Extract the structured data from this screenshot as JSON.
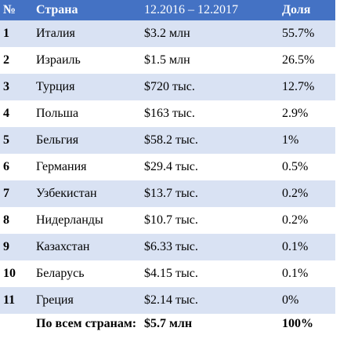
{
  "header": {
    "number": "№",
    "country": "Страна",
    "period": "12.2016 – 12.2017",
    "share": "Доля"
  },
  "rows": [
    {
      "num": "1",
      "country": "Италия",
      "amount": "$3.2 млн",
      "share": "55.7%"
    },
    {
      "num": "2",
      "country": "Израиль",
      "amount": "$1.5 млн",
      "share": "26.5%"
    },
    {
      "num": "3",
      "country": "Турция",
      "amount": "$720 тыс.",
      "share": "12.7%"
    },
    {
      "num": "4",
      "country": "Польша",
      "amount": "$163 тыс.",
      "share": "2.9%"
    },
    {
      "num": "5",
      "country": "Бельгия",
      "amount": "$58.2 тыс.",
      "share": "1%"
    },
    {
      "num": "6",
      "country": "Германия",
      "amount": "$29.4 тыс.",
      "share": "0.5%"
    },
    {
      "num": "7",
      "country": "Узбекистан",
      "amount": "$13.7 тыс.",
      "share": "0.2%"
    },
    {
      "num": "8",
      "country": "Нидерланды",
      "amount": "$10.7 тыс.",
      "share": "0.2%"
    },
    {
      "num": "9",
      "country": "Казахстан",
      "amount": "$6.33 тыс.",
      "share": "0.1%"
    },
    {
      "num": "10",
      "country": "Беларусь",
      "amount": "$4.15 тыс.",
      "share": "0.1%"
    },
    {
      "num": "11",
      "country": "Греция",
      "amount": "$2.14 тыс.",
      "share": "0%"
    }
  ],
  "total": {
    "label": "По всем странам:",
    "amount": "$5.7 млн",
    "share": "100%"
  },
  "colors": {
    "header_bg": "#4472c4",
    "alt_row_bg": "#d9e2f3",
    "header_text": "#ffffff"
  }
}
